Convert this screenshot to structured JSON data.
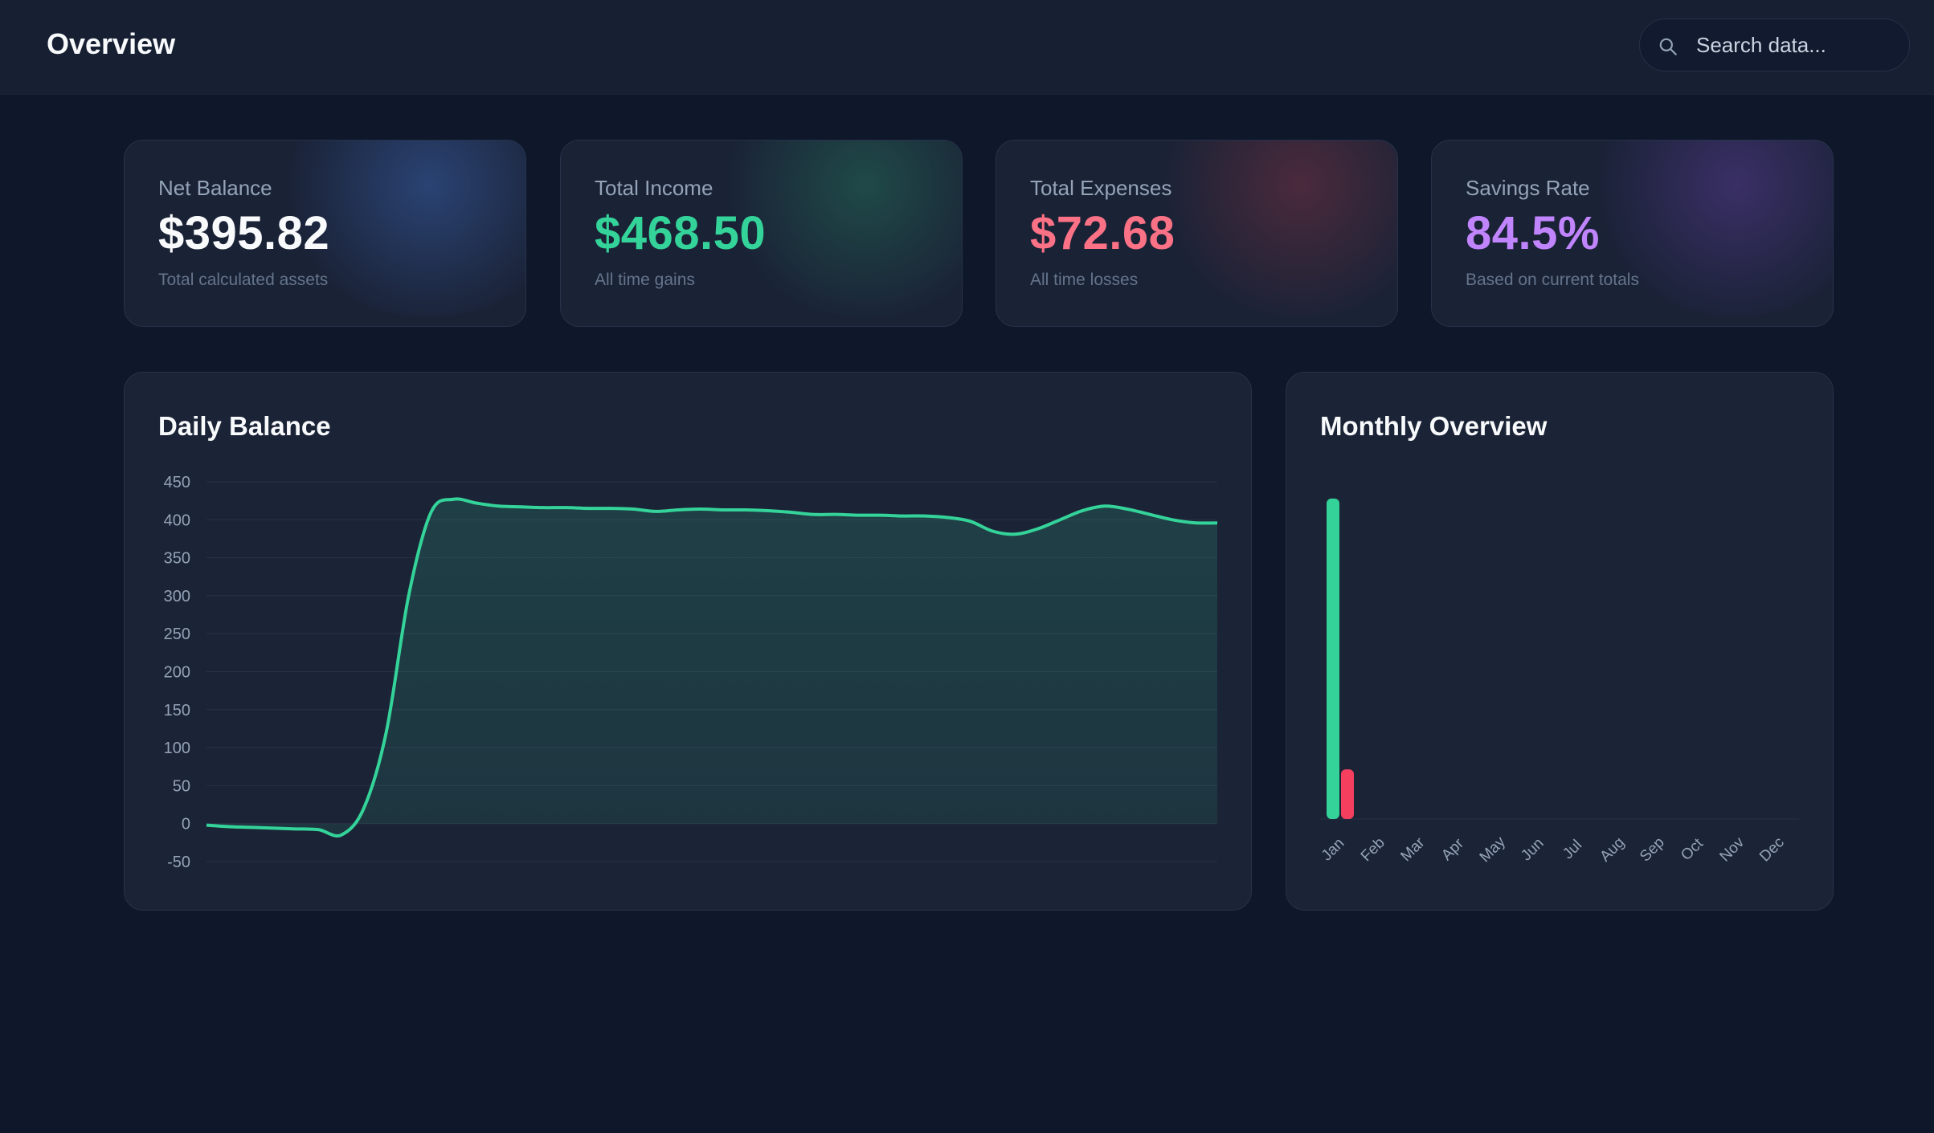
{
  "header": {
    "title": "Overview",
    "search_placeholder": "Search data..."
  },
  "cards": [
    {
      "label": "Net Balance",
      "value": "$395.82",
      "sub": "Total calculated assets",
      "color": "#f8fafc",
      "glow": "#2a4373"
    },
    {
      "label": "Total Income",
      "value": "$468.50",
      "sub": "All time gains",
      "color": "#34d399",
      "glow": "#1f4a48"
    },
    {
      "label": "Total Expenses",
      "value": "$72.68",
      "sub": "All time losses",
      "color": "#fb7185",
      "glow": "#4a2a3c"
    },
    {
      "label": "Savings Rate",
      "value": "84.5%",
      "sub": "Based on current totals",
      "color": "#c084fc",
      "glow": "#3a2f66"
    }
  ],
  "daily_panel": {
    "title": "Daily Balance"
  },
  "monthly_panel": {
    "title": "Monthly Overview"
  },
  "colors": {
    "income": "#34d399",
    "expense": "#f43f5e",
    "line": "#34d399"
  },
  "chart_data": [
    {
      "type": "area",
      "title": "Daily Balance",
      "ylim": [
        -50,
        450
      ],
      "yticks": [
        450,
        400,
        350,
        300,
        250,
        200,
        150,
        100,
        50,
        0,
        -50
      ],
      "grid": true,
      "series": [
        {
          "values": [
            -2,
            -4,
            -5,
            -6,
            -7,
            -8,
            -15,
            20,
            120,
            300,
            410,
            427,
            422,
            418,
            417,
            416,
            416,
            415,
            415,
            414,
            411,
            413,
            414,
            413,
            413,
            412,
            410,
            407,
            407,
            406,
            406,
            405,
            405,
            403,
            398,
            385,
            381,
            388,
            400,
            412,
            418,
            414,
            407,
            400,
            396,
            395.82
          ]
        }
      ]
    },
    {
      "type": "bar",
      "title": "Monthly Overview",
      "categories": [
        "Jan",
        "Feb",
        "Mar",
        "Apr",
        "May",
        "Jun",
        "Jul",
        "Aug",
        "Sep",
        "Oct",
        "Nov",
        "Dec"
      ],
      "series": [
        {
          "values": [
            468.5,
            0,
            0,
            0,
            0,
            0,
            0,
            0,
            0,
            0,
            0,
            0
          ]
        },
        {
          "values": [
            72.68,
            0,
            0,
            0,
            0,
            0,
            0,
            0,
            0,
            0,
            0,
            0
          ]
        }
      ]
    }
  ]
}
